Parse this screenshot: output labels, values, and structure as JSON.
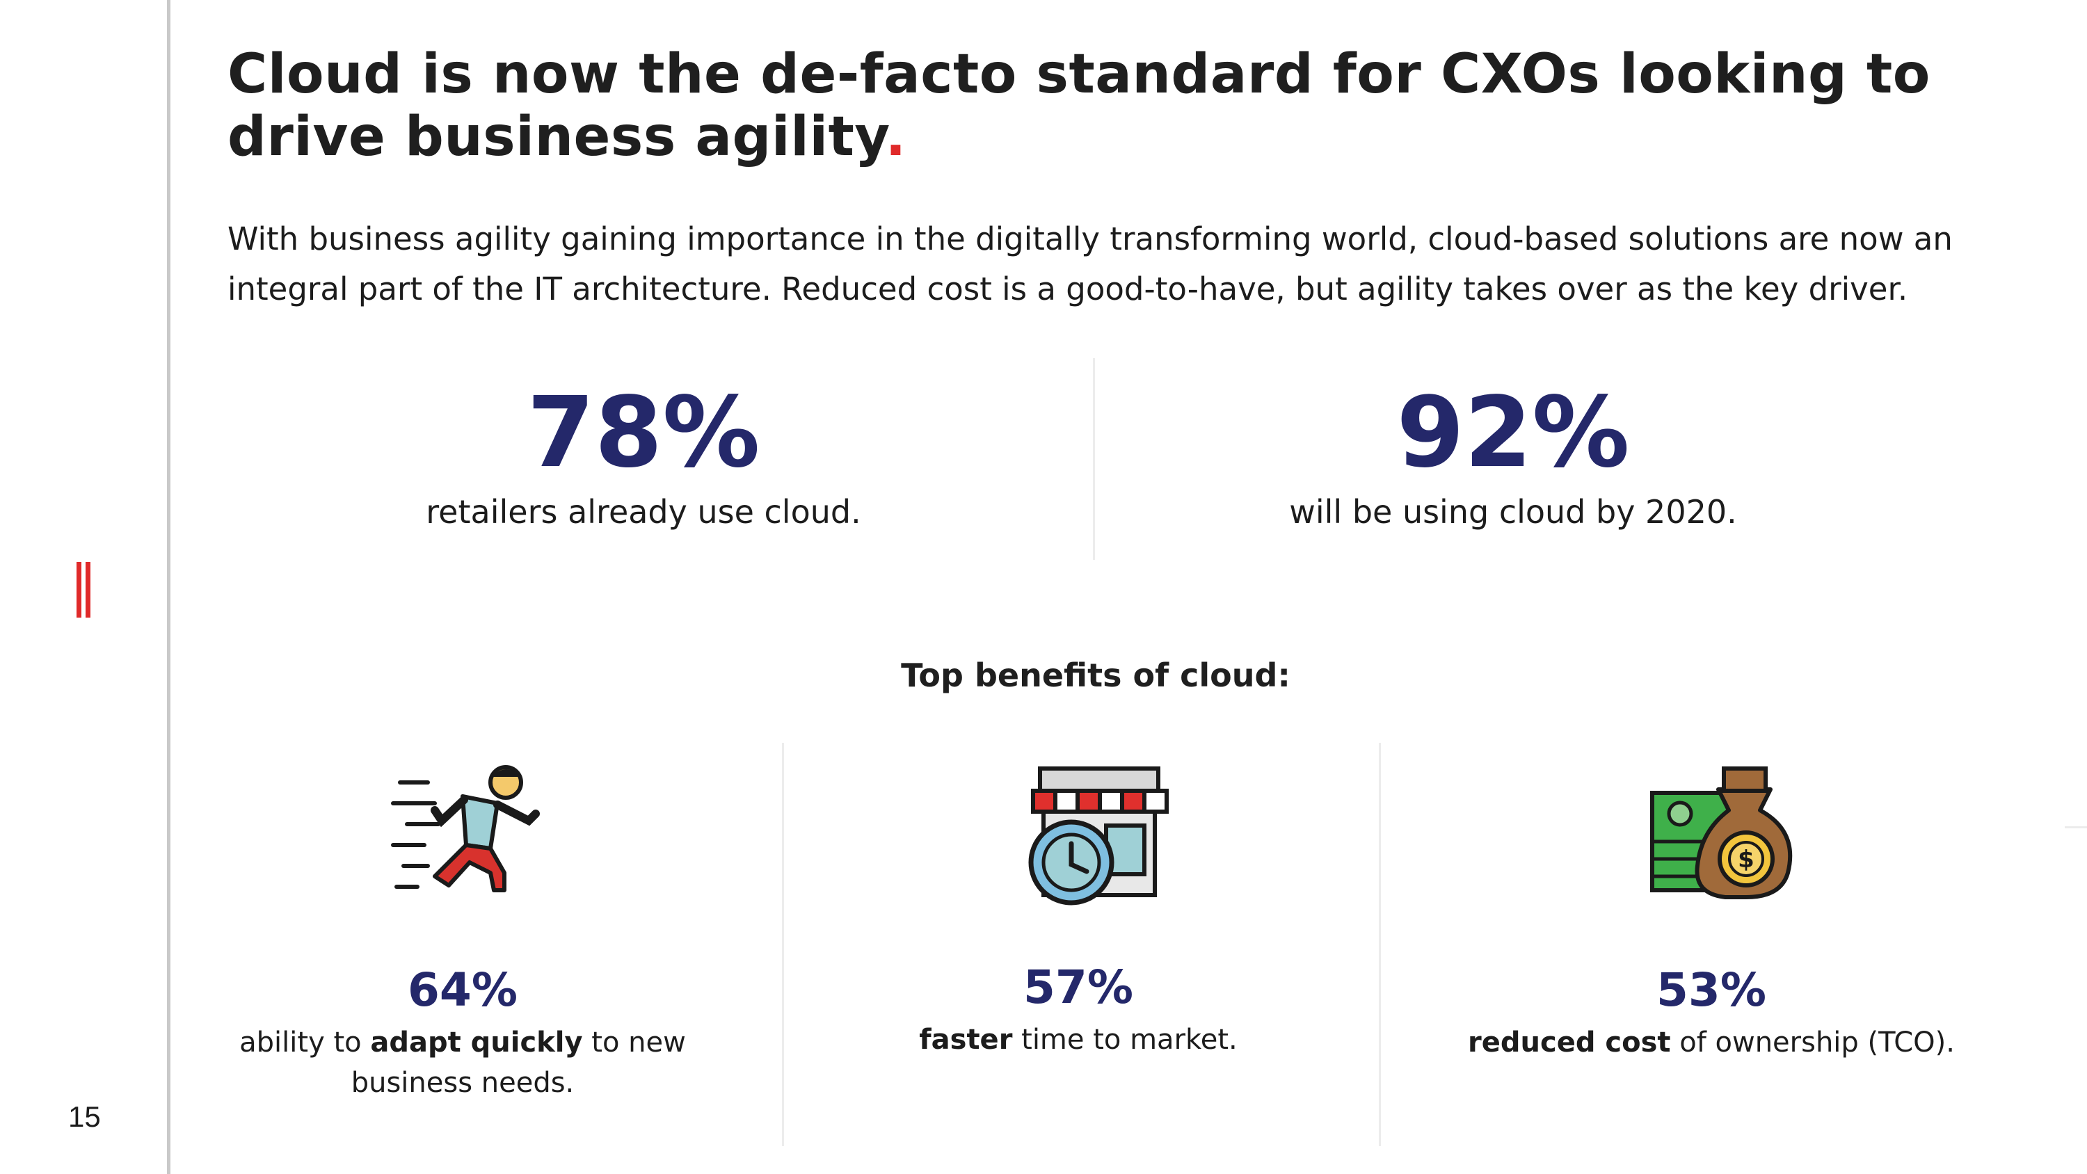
{
  "page": {
    "number": "15",
    "title": "Cloud is now the de-facto standard for CXOs looking to drive business agility",
    "title_period": ".",
    "intro": "With business agility gaining importance in the digitally transforming world, cloud-based solutions are now an integral part of the IT architecture. Reduced cost is a good-to-have, but agility takes over as the key driver."
  },
  "stats": [
    {
      "value": "78%",
      "caption": "retailers already use cloud."
    },
    {
      "value": "92%",
      "caption": "will be using cloud by 2020."
    }
  ],
  "benefits_heading": "Top benefits of cloud:",
  "benefits": [
    {
      "icon": "running-person-icon",
      "value": "64%",
      "pre": "ability to ",
      "bold": "adapt quickly",
      "post": " to new business needs."
    },
    {
      "icon": "storefront-clock-icon",
      "value": "57%",
      "pre": "",
      "bold": "faster",
      "post": " time to market."
    },
    {
      "icon": "money-bag-cash-icon",
      "value": "53%",
      "pre": "",
      "bold": "reduced cost",
      "post": " of ownership (TCO)."
    }
  ],
  "colors": {
    "accent_red": "#e02a2a",
    "stat_navy": "#24286a",
    "rule_gray": "#c9c9c9"
  }
}
